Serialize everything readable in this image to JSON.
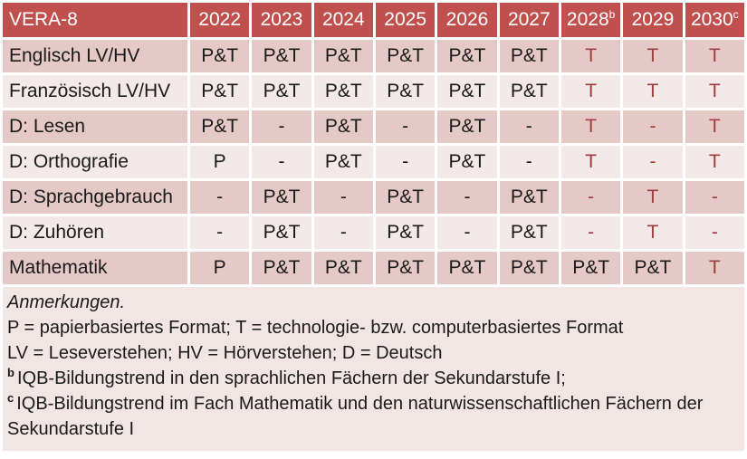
{
  "colors": {
    "header_bg": "#C0504D",
    "row_dark": "#E5C9C7",
    "row_light": "#F2E9E8",
    "notes_bg": "#F1E6E4",
    "red_text": "#9C3E3C",
    "header_text": "#FFFFFF",
    "body_text": "#1A1A1A"
  },
  "table": {
    "title": "VERA-8",
    "columns": [
      {
        "year": "2022",
        "sup": ""
      },
      {
        "year": "2023",
        "sup": ""
      },
      {
        "year": "2024",
        "sup": ""
      },
      {
        "year": "2025",
        "sup": ""
      },
      {
        "year": "2026",
        "sup": ""
      },
      {
        "year": "2027",
        "sup": ""
      },
      {
        "year": "2028",
        "sup": "b"
      },
      {
        "year": "2029",
        "sup": ""
      },
      {
        "year": "2030",
        "sup": "c"
      }
    ],
    "rows": [
      {
        "label": "Englisch LV/HV",
        "cells": [
          {
            "v": "P&T",
            "red": false
          },
          {
            "v": "P&T",
            "red": false
          },
          {
            "v": "P&T",
            "red": false
          },
          {
            "v": "P&T",
            "red": false
          },
          {
            "v": "P&T",
            "red": false
          },
          {
            "v": "P&T",
            "red": false
          },
          {
            "v": "T",
            "red": true
          },
          {
            "v": "T",
            "red": true
          },
          {
            "v": "T",
            "red": true
          }
        ]
      },
      {
        "label": "Französisch LV/HV",
        "cells": [
          {
            "v": "P&T",
            "red": false
          },
          {
            "v": "P&T",
            "red": false
          },
          {
            "v": "P&T",
            "red": false
          },
          {
            "v": "P&T",
            "red": false
          },
          {
            "v": "P&T",
            "red": false
          },
          {
            "v": "P&T",
            "red": false
          },
          {
            "v": "T",
            "red": true
          },
          {
            "v": "T",
            "red": true
          },
          {
            "v": "T",
            "red": true
          }
        ]
      },
      {
        "label": "D: Lesen",
        "cells": [
          {
            "v": "P&T",
            "red": false
          },
          {
            "v": "-",
            "red": false
          },
          {
            "v": "P&T",
            "red": false
          },
          {
            "v": "-",
            "red": false
          },
          {
            "v": "P&T",
            "red": false
          },
          {
            "v": "-",
            "red": false
          },
          {
            "v": "T",
            "red": true
          },
          {
            "v": "-",
            "red": true
          },
          {
            "v": "T",
            "red": true
          }
        ]
      },
      {
        "label": "D: Orthografie",
        "cells": [
          {
            "v": "P",
            "red": false
          },
          {
            "v": "-",
            "red": false
          },
          {
            "v": "P&T",
            "red": false
          },
          {
            "v": "-",
            "red": false
          },
          {
            "v": "P&T",
            "red": false
          },
          {
            "v": "-",
            "red": false
          },
          {
            "v": "T",
            "red": true
          },
          {
            "v": "-",
            "red": true
          },
          {
            "v": "T",
            "red": true
          }
        ]
      },
      {
        "label": "D: Sprachgebrauch",
        "cells": [
          {
            "v": "-",
            "red": false
          },
          {
            "v": "P&T",
            "red": false
          },
          {
            "v": "-",
            "red": false
          },
          {
            "v": "P&T",
            "red": false
          },
          {
            "v": "-",
            "red": false
          },
          {
            "v": "P&T",
            "red": false
          },
          {
            "v": "-",
            "red": true
          },
          {
            "v": "T",
            "red": true
          },
          {
            "v": "-",
            "red": true
          }
        ]
      },
      {
        "label": "D: Zuhören",
        "cells": [
          {
            "v": "-",
            "red": false
          },
          {
            "v": "P&T",
            "red": false
          },
          {
            "v": "-",
            "red": false
          },
          {
            "v": "P&T",
            "red": false
          },
          {
            "v": "-",
            "red": false
          },
          {
            "v": "P&T",
            "red": false
          },
          {
            "v": "-",
            "red": true
          },
          {
            "v": "T",
            "red": true
          },
          {
            "v": "-",
            "red": true
          }
        ]
      },
      {
        "label": "Mathematik",
        "cells": [
          {
            "v": "P",
            "red": false
          },
          {
            "v": "P&T",
            "red": false
          },
          {
            "v": "P&T",
            "red": false
          },
          {
            "v": "P&T",
            "red": false
          },
          {
            "v": "P&T",
            "red": false
          },
          {
            "v": "P&T",
            "red": false
          },
          {
            "v": "P&T",
            "red": false
          },
          {
            "v": "P&T",
            "red": false
          },
          {
            "v": "T",
            "red": true
          }
        ]
      }
    ]
  },
  "notes": {
    "heading": "Anmerkungen.",
    "lines": [
      {
        "sup": "",
        "text": "P = papierbasiertes Format; T = technologie- bzw. computerbasiertes Format"
      },
      {
        "sup": "",
        "text": "LV = Leseverstehen; HV = Hörverstehen; D = Deutsch"
      },
      {
        "sup": "b",
        "text": "IQB-Bildungstrend in den sprachlichen Fächern der Sekundarstufe I;"
      },
      {
        "sup": "c",
        "text": "IQB-Bildungstrend im Fach Mathematik und den naturwissenschaftlichen Fächern der Sekundarstufe I"
      }
    ]
  }
}
